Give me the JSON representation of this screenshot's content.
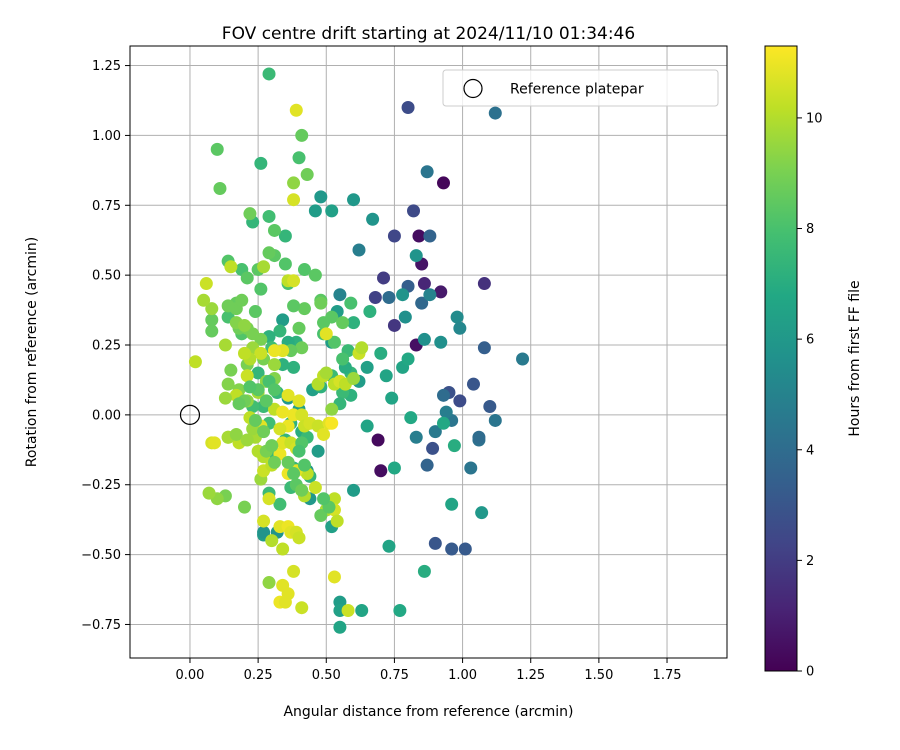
{
  "chart_data": {
    "type": "scatter",
    "title": "FOV centre drift starting at 2024/11/10 01:34:46",
    "xlabel": "Angular distance from reference (arcmin)",
    "ylabel": "Rotation from reference (arcmin)",
    "xlim": [
      -0.22,
      1.97
    ],
    "ylim": [
      -0.87,
      1.32
    ],
    "xticks": [
      "0.00",
      "0.25",
      "0.50",
      "0.75",
      "1.00",
      "1.25",
      "1.50",
      "1.75"
    ],
    "yticks": [
      "−0.75",
      "−0.50",
      "−0.25",
      "0.00",
      "0.25",
      "0.50",
      "0.75",
      "1.00",
      "1.25"
    ],
    "grid": true,
    "legend": {
      "position": "top-right",
      "label": "Reference platepar"
    },
    "reference_point": {
      "x": 0.0,
      "y": 0.0
    },
    "colorbar": {
      "label": "Hours from first FF file",
      "min": 0,
      "max": 11.3,
      "ticks": [
        "0",
        "2",
        "4",
        "6",
        "8",
        "10"
      ],
      "colormap": "viridis"
    },
    "points": [
      [
        0.93,
        0.83,
        0.2
      ],
      [
        0.84,
        0.64,
        0.4
      ],
      [
        0.85,
        0.54,
        0.6
      ],
      [
        0.92,
        0.44,
        0.8
      ],
      [
        0.83,
        0.25,
        0.5
      ],
      [
        0.69,
        -0.09,
        0.3
      ],
      [
        0.7,
        -0.2,
        0.4
      ],
      [
        0.86,
        0.47,
        1.2
      ],
      [
        1.08,
        0.47,
        1.6
      ],
      [
        0.8,
        1.1,
        2.6
      ],
      [
        0.75,
        0.64,
        2.4
      ],
      [
        0.71,
        0.49,
        2.0
      ],
      [
        0.68,
        0.42,
        2.2
      ],
      [
        0.75,
        0.32,
        1.8
      ],
      [
        0.89,
        -0.12,
        2.8
      ],
      [
        0.82,
        0.73,
        2.5
      ],
      [
        0.99,
        0.05,
        2.6
      ],
      [
        0.95,
        0.08,
        2.8
      ],
      [
        0.9,
        -0.46,
        3.0
      ],
      [
        0.96,
        -0.48,
        3.2
      ],
      [
        1.01,
        -0.48,
        3.2
      ],
      [
        1.04,
        0.11,
        3.0
      ],
      [
        1.08,
        0.24,
        3.4
      ],
      [
        1.1,
        0.03,
        3.2
      ],
      [
        0.87,
        -0.18,
        3.6
      ],
      [
        0.88,
        0.64,
        3.6
      ],
      [
        0.85,
        0.4,
        3.8
      ],
      [
        0.8,
        0.46,
        3.4
      ],
      [
        0.73,
        0.42,
        4.0
      ],
      [
        0.93,
        0.07,
        4.0
      ],
      [
        1.12,
        1.08,
        4.2
      ],
      [
        0.87,
        0.87,
        4.4
      ],
      [
        1.22,
        0.2,
        4.6
      ],
      [
        1.12,
        -0.02,
        4.4
      ],
      [
        1.06,
        -0.09,
        4.2
      ],
      [
        1.03,
        -0.19,
        4.4
      ],
      [
        0.96,
        -0.02,
        4.4
      ],
      [
        0.9,
        -0.06,
        4.6
      ],
      [
        0.94,
        0.01,
        4.8
      ],
      [
        0.62,
        0.59,
        4.8
      ],
      [
        0.55,
        0.43,
        5.0
      ],
      [
        0.88,
        0.43,
        5.0
      ],
      [
        1.06,
        -0.08,
        4.0
      ],
      [
        0.83,
        -0.08,
        4.8
      ],
      [
        0.98,
        0.35,
        5.4
      ],
      [
        0.99,
        0.31,
        5.2
      ],
      [
        0.92,
        0.26,
        5.6
      ],
      [
        0.86,
        0.27,
        5.6
      ],
      [
        0.83,
        0.57,
        5.8
      ],
      [
        0.78,
        0.43,
        5.8
      ],
      [
        0.79,
        0.35,
        5.6
      ],
      [
        0.67,
        0.7,
        5.8
      ],
      [
        0.6,
        0.77,
        6.0
      ],
      [
        0.48,
        0.78,
        6.0
      ],
      [
        0.46,
        0.73,
        6.2
      ],
      [
        0.52,
        0.73,
        6.4
      ],
      [
        0.52,
        0.26,
        6.2
      ],
      [
        0.54,
        0.37,
        6.2
      ],
      [
        0.62,
        0.12,
        6.2
      ],
      [
        0.65,
        0.17,
        6.4
      ],
      [
        0.72,
        0.14,
        6.6
      ],
      [
        0.78,
        0.17,
        6.6
      ],
      [
        0.8,
        0.2,
        6.8
      ],
      [
        0.74,
        0.06,
        6.6
      ],
      [
        0.93,
        -0.03,
        6.8
      ],
      [
        0.97,
        -0.11,
        7.0
      ],
      [
        0.81,
        -0.01,
        6.8
      ],
      [
        0.75,
        -0.19,
        6.8
      ],
      [
        0.65,
        -0.04,
        6.6
      ],
      [
        0.73,
        -0.47,
        6.6
      ],
      [
        0.86,
        -0.56,
        7.0
      ],
      [
        0.77,
        -0.7,
        6.8
      ],
      [
        0.96,
        -0.32,
        6.6
      ],
      [
        1.07,
        -0.35,
        6.0
      ],
      [
        0.63,
        -0.7,
        6.6
      ],
      [
        0.55,
        -0.67,
        6.2
      ],
      [
        0.55,
        -0.7,
        6.4
      ],
      [
        0.55,
        -0.76,
        6.6
      ],
      [
        0.6,
        -0.27,
        6.2
      ],
      [
        0.5,
        -0.34,
        6.4
      ],
      [
        0.52,
        -0.4,
        6.4
      ],
      [
        0.44,
        -0.3,
        6.0
      ],
      [
        0.43,
        -0.2,
        6.0
      ],
      [
        0.47,
        -0.13,
        6.2
      ],
      [
        0.45,
        0.09,
        6.4
      ],
      [
        0.4,
        0.02,
        6.4
      ],
      [
        0.36,
        0.06,
        6.0
      ],
      [
        0.34,
        0.34,
        6.2
      ],
      [
        0.27,
        -0.43,
        6.2
      ],
      [
        0.27,
        -0.42,
        5.8
      ],
      [
        0.32,
        -0.42,
        5.8
      ],
      [
        0.6,
        0.33,
        7.2
      ],
      [
        0.66,
        0.37,
        7.2
      ],
      [
        0.7,
        0.22,
        7.0
      ],
      [
        0.59,
        0.07,
        7.2
      ],
      [
        0.59,
        0.15,
        7.4
      ],
      [
        0.58,
        0.23,
        7.6
      ],
      [
        0.57,
        0.17,
        7.0
      ],
      [
        0.52,
        0.14,
        7.6
      ],
      [
        0.56,
        0.08,
        7.6
      ],
      [
        0.55,
        0.04,
        7.4
      ],
      [
        0.48,
        0.1,
        7.2
      ],
      [
        0.38,
        0.17,
        7.2
      ],
      [
        0.39,
        0.26,
        7.2
      ],
      [
        0.36,
        0.26,
        7.0
      ],
      [
        0.33,
        0.3,
        7.4
      ],
      [
        0.29,
        0.28,
        7.2
      ],
      [
        0.34,
        0.18,
        7.2
      ],
      [
        0.32,
        0.08,
        7.4
      ],
      [
        0.37,
        -0.03,
        7.2
      ],
      [
        0.41,
        -0.06,
        7.0
      ],
      [
        0.35,
        -0.09,
        7.4
      ],
      [
        0.43,
        -0.08,
        7.6
      ],
      [
        0.44,
        -0.22,
        7.4
      ],
      [
        0.38,
        -0.19,
        7.4
      ],
      [
        0.37,
        -0.26,
        7.6
      ],
      [
        0.33,
        -0.32,
        7.8
      ],
      [
        0.29,
        -0.14,
        7.6
      ],
      [
        0.27,
        0.03,
        7.6
      ],
      [
        0.23,
        0.03,
        7.8
      ],
      [
        0.29,
        -0.03,
        7.8
      ],
      [
        0.29,
        -0.28,
        7.6
      ],
      [
        0.25,
        0.15,
        7.4
      ],
      [
        0.3,
        0.24,
        7.8
      ],
      [
        0.35,
        0.64,
        7.4
      ],
      [
        0.29,
        0.71,
        7.8
      ],
      [
        0.23,
        0.69,
        7.4
      ],
      [
        0.26,
        0.9,
        7.4
      ],
      [
        0.29,
        1.22,
        7.6
      ],
      [
        0.56,
        0.2,
        8.0
      ],
      [
        0.53,
        0.26,
        8.2
      ],
      [
        0.49,
        0.29,
        8.0
      ],
      [
        0.49,
        0.33,
        8.4
      ],
      [
        0.48,
        0.41,
        8.4
      ],
      [
        0.42,
        0.38,
        8.6
      ],
      [
        0.42,
        0.52,
        8.2
      ],
      [
        0.46,
        0.5,
        8.4
      ],
      [
        0.52,
        0.35,
        8.4
      ],
      [
        0.56,
        0.33,
        8.6
      ],
      [
        0.59,
        0.4,
        8.0
      ],
      [
        0.48,
        0.4,
        8.8
      ],
      [
        0.36,
        0.47,
        8.0
      ],
      [
        0.35,
        0.54,
        8.2
      ],
      [
        0.38,
        0.39,
        8.4
      ],
      [
        0.4,
        0.31,
        8.6
      ],
      [
        0.41,
        0.24,
        8.8
      ],
      [
        0.37,
        0.23,
        8.6
      ],
      [
        0.31,
        0.57,
        8.4
      ],
      [
        0.29,
        0.58,
        8.6
      ],
      [
        0.25,
        0.52,
        8.4
      ],
      [
        0.26,
        0.45,
        8.2
      ],
      [
        0.24,
        0.37,
        8.4
      ],
      [
        0.19,
        0.29,
        8.2
      ],
      [
        0.14,
        0.35,
        8.0
      ],
      [
        0.14,
        0.55,
        8.2
      ],
      [
        0.19,
        0.52,
        8.0
      ],
      [
        0.21,
        0.49,
        8.4
      ],
      [
        0.17,
        0.4,
        8.6
      ],
      [
        0.17,
        0.38,
        8.8
      ],
      [
        0.18,
        0.31,
        8.8
      ],
      [
        0.1,
        0.95,
        8.4
      ],
      [
        0.11,
        0.81,
        8.6
      ],
      [
        0.22,
        0.72,
        8.8
      ],
      [
        0.31,
        0.66,
        8.4
      ],
      [
        0.41,
        1.0,
        8.6
      ],
      [
        0.43,
        0.86,
        8.8
      ],
      [
        0.38,
        0.83,
        9.4
      ],
      [
        0.4,
        0.92,
        8.0
      ],
      [
        0.08,
        0.3,
        8.6
      ],
      [
        0.08,
        0.34,
        8.6
      ],
      [
        0.14,
        0.39,
        8.8
      ],
      [
        0.19,
        0.41,
        8.8
      ],
      [
        0.21,
        0.31,
        9.0
      ],
      [
        0.26,
        0.27,
        9.0
      ],
      [
        0.27,
        0.2,
        9.0
      ],
      [
        0.21,
        0.18,
        9.0
      ],
      [
        0.15,
        0.16,
        9.0
      ],
      [
        0.14,
        0.11,
        9.2
      ],
      [
        0.18,
        0.09,
        9.2
      ],
      [
        0.21,
        0.05,
        9.4
      ],
      [
        0.25,
        0.09,
        9.2
      ],
      [
        0.28,
        0.12,
        9.4
      ],
      [
        0.31,
        0.13,
        9.2
      ],
      [
        0.31,
        0.18,
        9.6
      ],
      [
        0.23,
        0.24,
        9.6
      ],
      [
        0.23,
        0.29,
        9.0
      ],
      [
        0.17,
        0.33,
        9.2
      ],
      [
        0.2,
        0.32,
        9.4
      ],
      [
        0.13,
        0.25,
        9.8
      ],
      [
        0.08,
        0.38,
        9.6
      ],
      [
        0.05,
        0.41,
        9.8
      ],
      [
        0.06,
        0.47,
        10.4
      ],
      [
        0.15,
        0.53,
        10.2
      ],
      [
        0.27,
        0.53,
        9.8
      ],
      [
        0.36,
        0.48,
        10.2
      ],
      [
        0.38,
        0.48,
        10.6
      ],
      [
        0.38,
        0.77,
        10.6
      ],
      [
        0.39,
        1.09,
        10.8
      ],
      [
        0.02,
        0.19,
        10.2
      ],
      [
        0.08,
        -0.1,
        10.6
      ],
      [
        0.09,
        -0.1,
        10.8
      ],
      [
        0.14,
        -0.08,
        10.0
      ],
      [
        0.18,
        -0.1,
        10.2
      ],
      [
        0.24,
        -0.08,
        9.8
      ],
      [
        0.26,
        -0.05,
        10.4
      ],
      [
        0.25,
        -0.13,
        10.0
      ],
      [
        0.27,
        -0.15,
        10.0
      ],
      [
        0.26,
        -0.23,
        9.6
      ],
      [
        0.27,
        -0.2,
        10.4
      ],
      [
        0.3,
        -0.18,
        10.2
      ],
      [
        0.29,
        -0.3,
        10.6
      ],
      [
        0.27,
        -0.38,
        10.6
      ],
      [
        0.33,
        -0.4,
        10.8
      ],
      [
        0.36,
        -0.4,
        11.0
      ],
      [
        0.37,
        -0.42,
        10.8
      ],
      [
        0.39,
        -0.42,
        10.6
      ],
      [
        0.4,
        -0.44,
        10.4
      ],
      [
        0.34,
        -0.48,
        10.2
      ],
      [
        0.3,
        -0.45,
        10.0
      ],
      [
        0.29,
        -0.6,
        9.4
      ],
      [
        0.34,
        -0.61,
        10.8
      ],
      [
        0.36,
        -0.64,
        10.8
      ],
      [
        0.33,
        -0.67,
        11.0
      ],
      [
        0.35,
        -0.67,
        10.8
      ],
      [
        0.38,
        -0.56,
        10.6
      ],
      [
        0.41,
        -0.69,
        10.4
      ],
      [
        0.5,
        -0.34,
        10.0
      ],
      [
        0.53,
        -0.3,
        10.2
      ],
      [
        0.53,
        -0.34,
        10.6
      ],
      [
        0.54,
        -0.38,
        10.2
      ],
      [
        0.46,
        -0.26,
        10.4
      ],
      [
        0.43,
        -0.21,
        10.2
      ],
      [
        0.42,
        -0.29,
        10.0
      ],
      [
        0.41,
        -0.27,
        10.8
      ],
      [
        0.39,
        -0.2,
        10.8
      ],
      [
        0.36,
        -0.21,
        11.0
      ],
      [
        0.33,
        -0.14,
        11.0
      ],
      [
        0.34,
        -0.1,
        10.8
      ],
      [
        0.36,
        -0.04,
        11.0
      ],
      [
        0.38,
        0.0,
        11.0
      ],
      [
        0.4,
        0.05,
        10.8
      ],
      [
        0.41,
        0.0,
        10.6
      ],
      [
        0.42,
        -0.04,
        10.4
      ],
      [
        0.44,
        -0.03,
        10.6
      ],
      [
        0.47,
        -0.04,
        10.4
      ],
      [
        0.49,
        -0.07,
        10.8
      ],
      [
        0.51,
        -0.03,
        10.8
      ],
      [
        0.52,
        -0.03,
        11.2
      ],
      [
        0.47,
        0.11,
        10.0
      ],
      [
        0.49,
        0.14,
        10.2
      ],
      [
        0.5,
        0.15,
        9.8
      ],
      [
        0.53,
        0.11,
        10.2
      ],
      [
        0.55,
        0.12,
        10.6
      ],
      [
        0.57,
        0.11,
        10.2
      ],
      [
        0.6,
        0.13,
        9.6
      ],
      [
        0.62,
        0.22,
        10.4
      ],
      [
        0.63,
        0.24,
        10.0
      ],
      [
        0.5,
        0.29,
        10.8
      ],
      [
        0.52,
        0.02,
        9.4
      ],
      [
        0.53,
        -0.58,
        10.8
      ],
      [
        0.58,
        -0.7,
        10.4
      ],
      [
        0.26,
        -0.04,
        10.8
      ],
      [
        0.31,
        0.02,
        10.2
      ],
      [
        0.33,
        -0.05,
        10.6
      ],
      [
        0.37,
        -0.1,
        10.4
      ],
      [
        0.39,
        -0.12,
        10.6
      ],
      [
        0.36,
        0.07,
        10.8
      ],
      [
        0.34,
        0.01,
        11.0
      ],
      [
        0.34,
        0.23,
        10.8
      ],
      [
        0.31,
        0.23,
        11.0
      ],
      [
        0.26,
        0.22,
        10.4
      ],
      [
        0.22,
        0.2,
        10.0
      ],
      [
        0.2,
        0.22,
        10.2
      ],
      [
        0.21,
        0.14,
        10.4
      ],
      [
        0.25,
        0.08,
        9.8
      ],
      [
        0.22,
        -0.01,
        10.2
      ],
      [
        0.2,
        0.05,
        10.0
      ],
      [
        0.17,
        0.07,
        10.2
      ],
      [
        0.13,
        0.06,
        9.6
      ],
      [
        0.14,
        -0.08,
        9.8
      ],
      [
        0.17,
        -0.07,
        9.4
      ],
      [
        0.23,
        -0.05,
        9.6
      ],
      [
        0.21,
        -0.09,
        9.6
      ],
      [
        0.2,
        -0.33,
        9.0
      ],
      [
        0.13,
        -0.29,
        9.0
      ],
      [
        0.1,
        -0.3,
        9.4
      ],
      [
        0.07,
        -0.28,
        9.6
      ],
      [
        0.28,
        -0.13,
        9.0
      ],
      [
        0.31,
        -0.17,
        8.8
      ],
      [
        0.3,
        -0.11,
        8.8
      ],
      [
        0.27,
        -0.06,
        8.8
      ],
      [
        0.2,
        0.05,
        8.8
      ],
      [
        0.18,
        0.04,
        8.6
      ],
      [
        0.24,
        -0.02,
        8.6
      ],
      [
        0.25,
        0.09,
        8.4
      ],
      [
        0.22,
        0.1,
        8.2
      ],
      [
        0.29,
        0.12,
        8.0
      ],
      [
        0.31,
        0.09,
        8.2
      ],
      [
        0.28,
        0.05,
        8.4
      ],
      [
        0.36,
        -0.17,
        8.6
      ],
      [
        0.38,
        -0.21,
        8.4
      ],
      [
        0.41,
        -0.1,
        8.2
      ],
      [
        0.4,
        -0.13,
        8.0
      ],
      [
        0.42,
        -0.18,
        8.2
      ],
      [
        0.39,
        -0.25,
        8.4
      ],
      [
        0.41,
        -0.27,
        8.8
      ],
      [
        0.48,
        -0.36,
        8.6
      ],
      [
        0.51,
        -0.33,
        8.4
      ],
      [
        0.49,
        -0.3,
        8.2
      ]
    ]
  }
}
